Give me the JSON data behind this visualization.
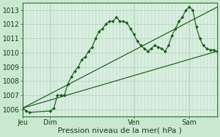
{
  "bg_color": "#c8e8d0",
  "plot_bg_color": "#d8eee0",
  "grid_color": "#b8d8c0",
  "line_color": "#1a5c1a",
  "ylabel_range": [
    1005.5,
    1013.5
  ],
  "yticks": [
    1006,
    1007,
    1008,
    1009,
    1010,
    1011,
    1012,
    1013
  ],
  "xlabel": "Pression niveau de la mer( hPa )",
  "xtick_labels": [
    "Jeu",
    "Dim",
    "Ven",
    "Sam"
  ],
  "xtick_positions": [
    0,
    8,
    32,
    48
  ],
  "xlim": [
    0,
    56
  ],
  "line1_x": [
    0,
    1,
    2,
    8,
    9,
    10,
    11,
    12,
    13,
    14,
    15,
    16,
    17,
    18,
    19,
    20,
    21,
    22,
    23,
    24,
    25,
    26,
    27,
    28,
    29,
    30,
    31,
    32,
    33,
    34,
    35,
    36,
    37,
    38,
    39,
    40,
    41,
    42,
    43,
    44,
    45,
    46,
    47,
    48,
    49,
    50,
    51,
    52,
    53,
    54,
    55,
    56
  ],
  "line1_y": [
    1006.1,
    1005.9,
    1005.8,
    1005.9,
    1006.1,
    1007.0,
    1007.0,
    1007.0,
    1007.8,
    1008.3,
    1008.7,
    1009.0,
    1009.5,
    1009.7,
    1010.1,
    1010.4,
    1011.0,
    1011.5,
    1011.7,
    1012.0,
    1012.2,
    1012.2,
    1012.5,
    1012.2,
    1012.2,
    1012.1,
    1011.7,
    1011.3,
    1010.8,
    1010.5,
    1010.3,
    1010.1,
    1010.3,
    1010.5,
    1010.4,
    1010.3,
    1010.1,
    1010.5,
    1011.2,
    1011.7,
    1012.2,
    1012.5,
    1013.0,
    1013.2,
    1013.0,
    1011.8,
    1011.0,
    1010.5,
    1010.3,
    1010.2,
    1010.2,
    1010.1
  ],
  "line2_x": [
    0,
    56
  ],
  "line2_y": [
    1006.1,
    1010.1
  ],
  "line3_x": [
    0,
    56
  ],
  "line3_y": [
    1006.1,
    1013.2
  ],
  "vline_positions": [
    0,
    8,
    32,
    48
  ]
}
